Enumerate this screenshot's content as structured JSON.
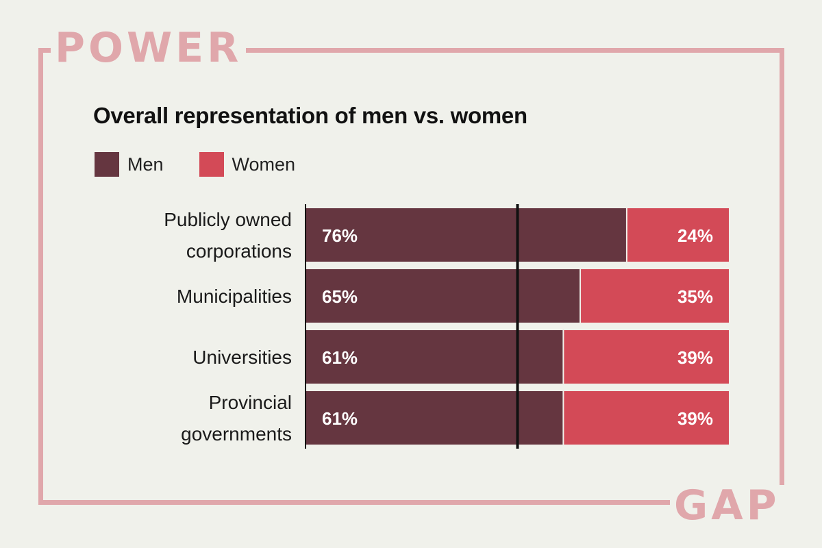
{
  "brand": {
    "top_word": "POWER",
    "bottom_word": "GAP",
    "color": "#e0a7ab"
  },
  "colors": {
    "men": "#653640",
    "women": "#d34a57",
    "background": "#f0f1eb",
    "midline": "#111111"
  },
  "chart_data": {
    "type": "bar",
    "orientation": "horizontal",
    "stacked": true,
    "title": "Overall representation of men vs. women",
    "categories": [
      [
        "Publicly owned",
        "corporations"
      ],
      [
        "Municipalities"
      ],
      [
        "Universities"
      ],
      [
        "Provincial",
        "governments"
      ]
    ],
    "series": [
      {
        "name": "Men",
        "values": [
          76,
          65,
          61,
          61
        ],
        "labels": [
          "76%",
          "65%",
          "61%",
          "61%"
        ]
      },
      {
        "name": "Women",
        "values": [
          24,
          35,
          39,
          39
        ],
        "labels": [
          "24%",
          "35%",
          "39%",
          "39%"
        ]
      }
    ],
    "xlim": [
      0,
      100
    ],
    "reference_line": 50,
    "grid": false,
    "legend": "top-left"
  }
}
